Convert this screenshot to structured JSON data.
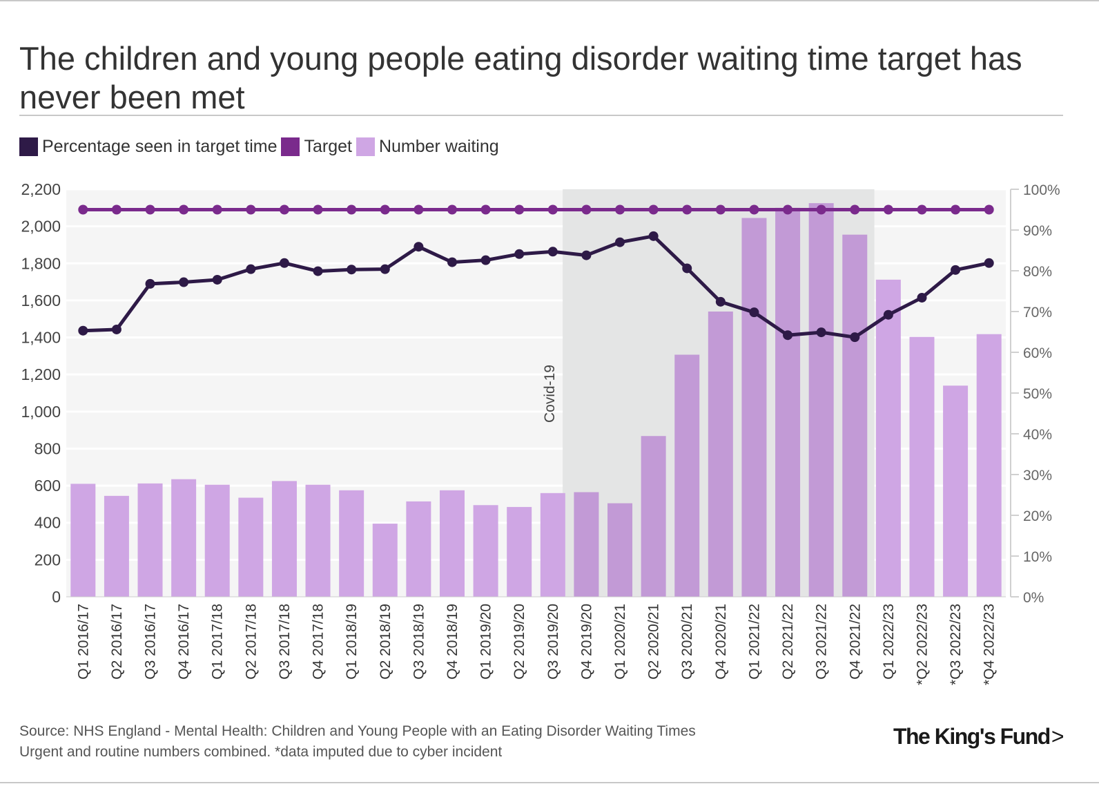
{
  "title": "The children and young people eating disorder waiting time target has never been met",
  "legend": [
    {
      "label": "Percentage seen in target time",
      "color": "#2e1a47"
    },
    {
      "label": "Target",
      "color": "#7a2a8c"
    },
    {
      "label": "Number waiting",
      "color": "#cfa6e4"
    }
  ],
  "chart_data": {
    "type": "bar+line",
    "categories": [
      "Q1 2016/17",
      "Q2 2016/17",
      "Q3 2016/17",
      "Q4 2016/17",
      "Q1 2017/18",
      "Q2 2017/18",
      "Q3 2017/18",
      "Q4 2017/18",
      "Q1 2018/19",
      "Q2 2018/19",
      "Q3 2018/19",
      "Q4 2018/19",
      "Q1 2019/20",
      "Q2 2019/20",
      "Q3 2019/20",
      "Q4 2019/20",
      "Q1 2020/21",
      "Q2 2020/21",
      "Q3 2020/21",
      "Q4 2020/21",
      "Q1 2021/22",
      "Q2 2021/22",
      "Q3 2021/22",
      "Q4 2021/22",
      "Q1 2022/23",
      "*Q2 2022/23",
      "*Q3 2022/23",
      "*Q4 2022/23"
    ],
    "series": [
      {
        "name": "Number waiting",
        "type": "bar",
        "axis": "left",
        "values": [
          610,
          545,
          612,
          635,
          605,
          535,
          625,
          605,
          575,
          395,
          515,
          575,
          495,
          485,
          560,
          565,
          505,
          868,
          1307,
          1540,
          2045,
          2100,
          2125,
          1955,
          1712,
          1403,
          1140,
          1418
        ]
      },
      {
        "name": "Percentage seen in target time",
        "type": "line",
        "axis": "right",
        "values": [
          65.3,
          65.6,
          76.8,
          77.2,
          77.8,
          80.4,
          81.9,
          79.9,
          80.3,
          80.4,
          85.9,
          82.1,
          82.6,
          84.1,
          84.7,
          83.8,
          87.0,
          88.5,
          80.6,
          72.4,
          69.8,
          64.2,
          64.9,
          63.7,
          69.2,
          73.4,
          80.2,
          81.9
        ]
      },
      {
        "name": "Target",
        "type": "line",
        "axis": "right",
        "values": [
          95,
          95,
          95,
          95,
          95,
          95,
          95,
          95,
          95,
          95,
          95,
          95,
          95,
          95,
          95,
          95,
          95,
          95,
          95,
          95,
          95,
          95,
          95,
          95,
          95,
          95,
          95,
          95
        ]
      }
    ],
    "left_axis": {
      "min": 0,
      "max": 2200,
      "ticks": [
        0,
        200,
        400,
        600,
        800,
        1000,
        1200,
        1400,
        1600,
        1800,
        2000,
        2200
      ],
      "tick_labels": [
        "0",
        "200",
        "400",
        "600",
        "800",
        "1,000",
        "1,200",
        "1,400",
        "1,600",
        "1,800",
        "2,000",
        "2,200"
      ]
    },
    "right_axis": {
      "min": 0,
      "max": 100,
      "ticks": [
        0,
        10,
        20,
        30,
        40,
        50,
        60,
        70,
        80,
        90,
        100
      ],
      "tick_labels": [
        "0%",
        "10%",
        "20%",
        "30%",
        "40%",
        "50%",
        "60%",
        "70%",
        "80%",
        "90%",
        "100%"
      ]
    },
    "annotation": {
      "label": "Covid-19",
      "start_category": "Q4 2019/20",
      "end_category": "Q4 2021/22"
    },
    "colors": {
      "bars": "#cfa6e4",
      "bars_shaded": "#c29ad6",
      "percentage": "#2e1a47",
      "target": "#7a2a8c",
      "covid_band": "#e4e5e5",
      "plot_bg": "#f5f5f5"
    }
  },
  "source": {
    "line1": "Source: NHS England - Mental Health: Children and Young People with an Eating Disorder Waiting Times",
    "line2": "Urgent and routine numbers combined. *data imputed due to cyber incident"
  },
  "logo": {
    "text": "The King's Fund",
    "chevron": ">"
  }
}
